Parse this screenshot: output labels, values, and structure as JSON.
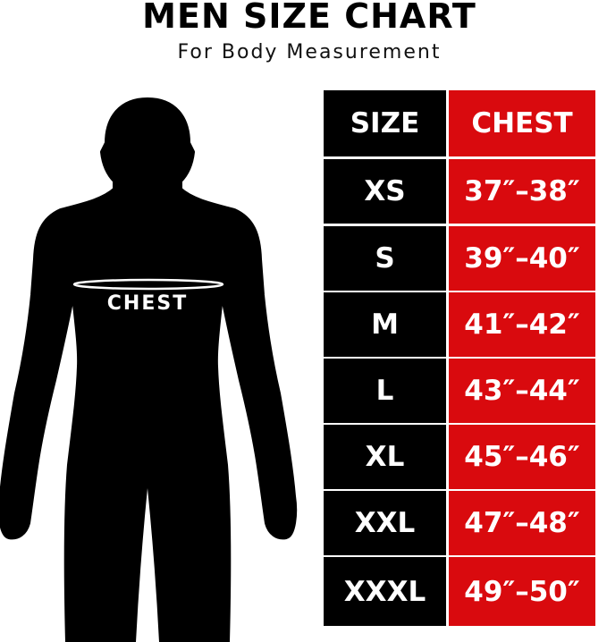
{
  "title": "MEN SIZE CHART",
  "subtitle": "For Body Measurement",
  "figure": {
    "label": "CHEST"
  },
  "colors": {
    "size_column": "#000000",
    "chest_column": "#d90a0e",
    "text": "#ffffff"
  },
  "chart_data": {
    "type": "table",
    "columns": [
      "SIZE",
      "CHEST"
    ],
    "rows": [
      [
        "XS",
        "37″–38″"
      ],
      [
        "S",
        "39″–40″"
      ],
      [
        "M",
        "41″–42″"
      ],
      [
        "L",
        "43″–44″"
      ],
      [
        "XL",
        "45″–46″"
      ],
      [
        "XXL",
        "47″–48″"
      ],
      [
        "XXXL",
        "49″–50″"
      ]
    ]
  }
}
